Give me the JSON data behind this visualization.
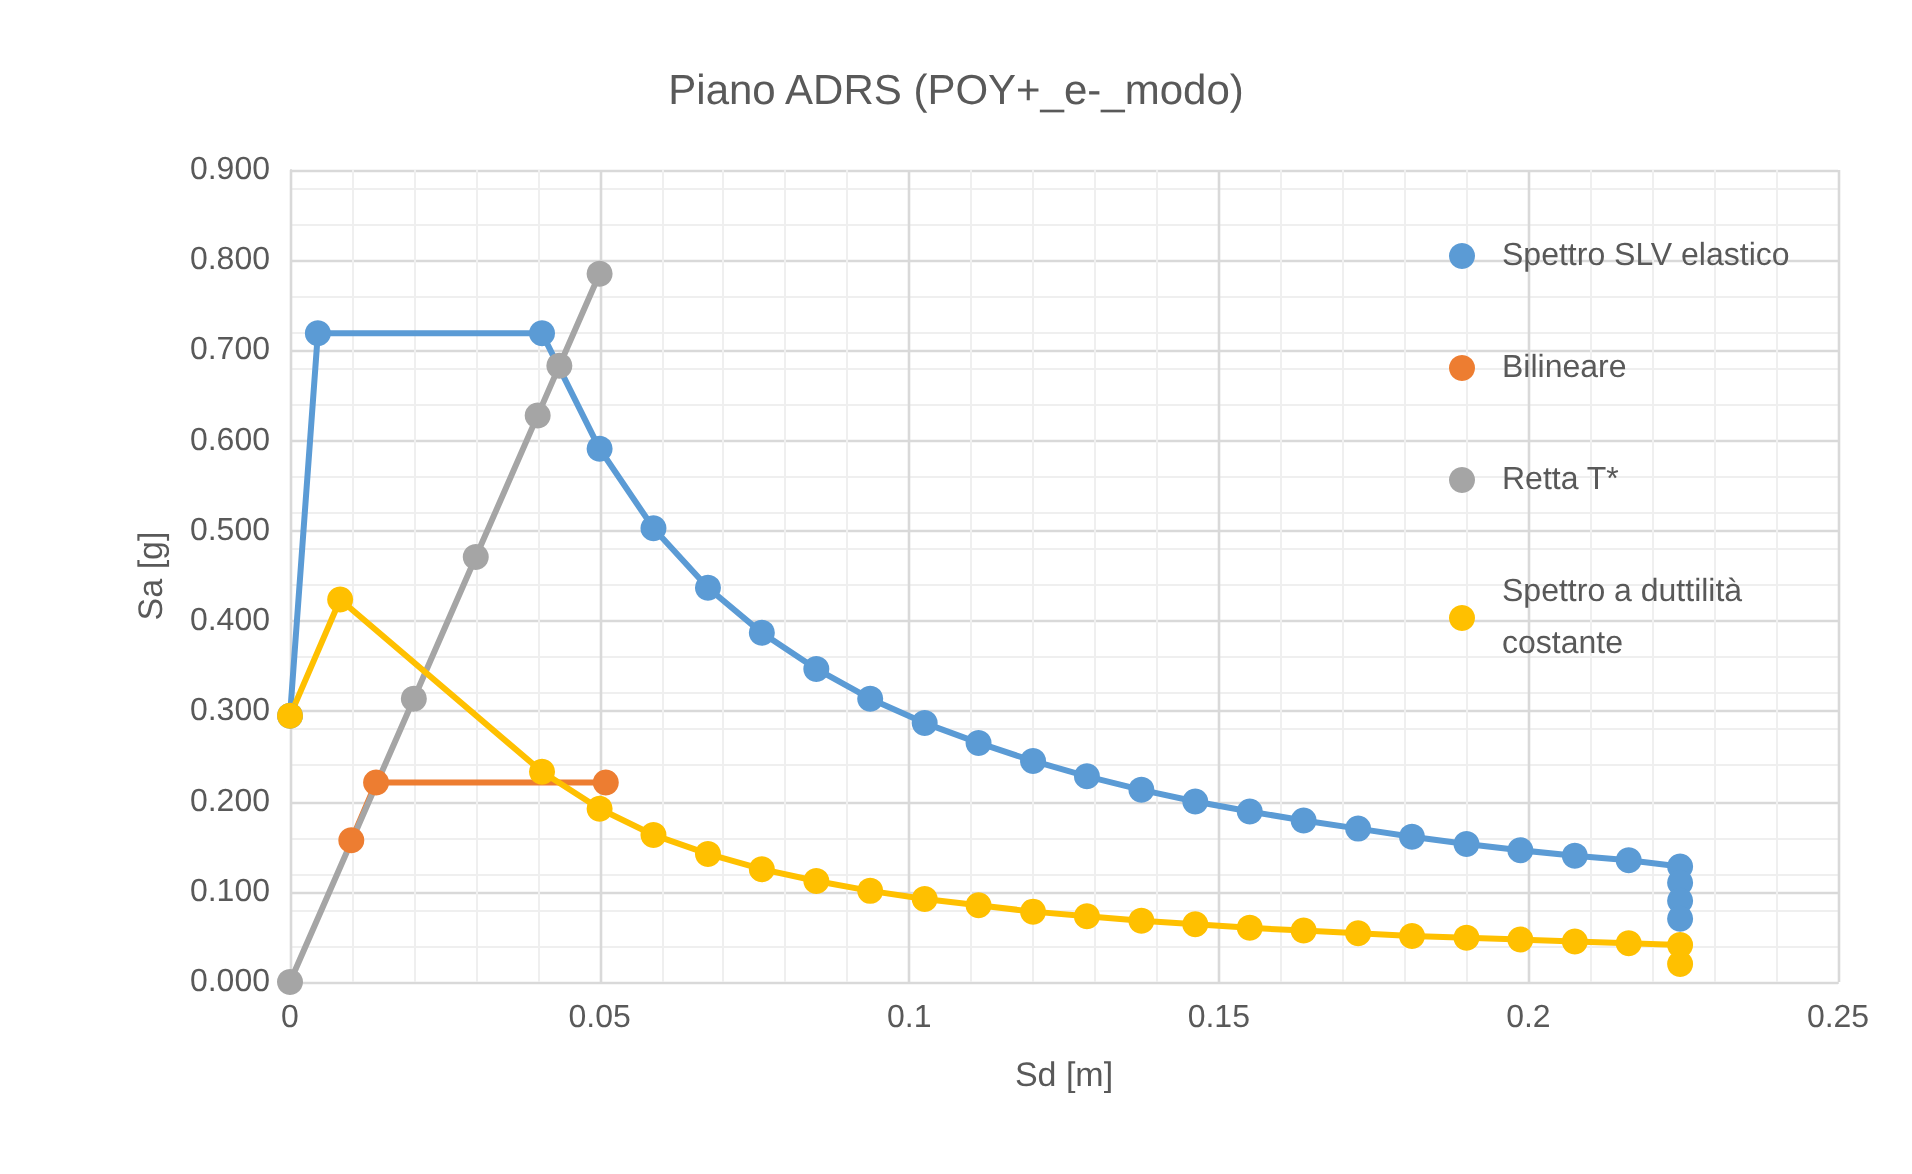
{
  "chart_data": {
    "type": "line",
    "title": "Piano ADRS (POY+_e-_modo)",
    "xlabel": "Sd [m]",
    "ylabel": "Sa [g]",
    "xlim": [
      0,
      0.25
    ],
    "xticks": [
      0,
      0.05,
      0.1,
      0.15,
      0.2,
      0.25
    ],
    "ylim": [
      0,
      0.9
    ],
    "yticks": [
      {
        "value": 0,
        "label": "0.000"
      },
      {
        "value": 0.1,
        "label": "0.100"
      },
      {
        "value": 0.2,
        "label": "0.200"
      },
      {
        "value": 0.3,
        "label": "0.300"
      },
      {
        "value": 0.4,
        "label": "0.400"
      },
      {
        "value": 0.5,
        "label": "0.500"
      },
      {
        "value": 0.6,
        "label": "0.600"
      },
      {
        "value": 0.7,
        "label": "0.700"
      },
      {
        "value": 0.8,
        "label": "0.800"
      },
      {
        "value": 0.9,
        "label": "0.900"
      }
    ],
    "grid": true,
    "legend": "top right",
    "marker": "circle",
    "line_style": "solid",
    "series": [
      {
        "name": "Spettro SLV elastico",
        "color": "#5b9bd5",
        "x": [
          0,
          0.0045,
          0.0407,
          0.05,
          0.0587,
          0.0675,
          0.0762,
          0.085,
          0.0937,
          0.1025,
          0.1112,
          0.12,
          0.1287,
          0.1375,
          0.1462,
          0.155,
          0.1637,
          0.1725,
          0.1812,
          0.19,
          0.1987,
          0.2075,
          0.2162,
          0.2245,
          0.2245,
          0.2245,
          0.2245
        ],
        "values": [
          0.295,
          0.719,
          0.719,
          0.591,
          0.503,
          0.437,
          0.387,
          0.347,
          0.314,
          0.287,
          0.265,
          0.245,
          0.228,
          0.213,
          0.2,
          0.189,
          0.179,
          0.17,
          0.161,
          0.153,
          0.146,
          0.14,
          0.135,
          0.128,
          0.11,
          0.09,
          0.07
        ]
      },
      {
        "name": "Bilineare",
        "color": "#ed7d31",
        "x": [
          0.0099,
          0.0139,
          0.051
        ],
        "values": [
          0.157,
          0.221,
          0.221
        ]
      },
      {
        "name": "Retta T*",
        "color": "#a5a5a5",
        "x": [
          0,
          0.02,
          0.03,
          0.04,
          0.0435,
          0.05
        ],
        "values": [
          0,
          0.314,
          0.471,
          0.628,
          0.683,
          0.785
        ]
      },
      {
        "name": "Spettro a duttilità costante",
        "color": "#ffc000",
        "x": [
          0,
          0.0081,
          0.0407,
          0.05,
          0.0587,
          0.0675,
          0.0762,
          0.085,
          0.0937,
          0.1025,
          0.1112,
          0.12,
          0.1287,
          0.1375,
          0.1462,
          0.155,
          0.1637,
          0.1725,
          0.1812,
          0.19,
          0.1987,
          0.2075,
          0.2162,
          0.2245,
          0.2245
        ],
        "values": [
          0.295,
          0.424,
          0.233,
          0.192,
          0.163,
          0.142,
          0.125,
          0.112,
          0.101,
          0.092,
          0.085,
          0.078,
          0.073,
          0.068,
          0.064,
          0.06,
          0.057,
          0.054,
          0.051,
          0.049,
          0.047,
          0.045,
          0.043,
          0.041,
          0.02
        ]
      }
    ]
  }
}
